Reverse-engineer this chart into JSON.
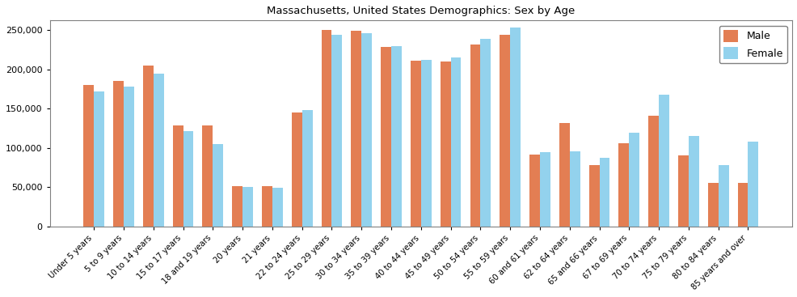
{
  "title": "Massachusetts, United States Demographics: Sex by Age",
  "categories": [
    "Under 5 years",
    "5 to 9 years",
    "10 to 14 years",
    "15 to 17 years",
    "18 and 19 years",
    "20 years",
    "21 years",
    "22 to 24 years",
    "25 to 29 years",
    "30 to 34 years",
    "35 to 39 years",
    "40 to 44 years",
    "45 to 49 years",
    "50 to 54 years",
    "55 to 59 years",
    "60 and 61 years",
    "62 to 64 years",
    "65 and 66 years",
    "67 to 69 years",
    "70 to 74 years",
    "75 to 79 years",
    "80 to 84 years",
    "85 years and over"
  ],
  "male": [
    180000,
    185000,
    205000,
    129000,
    129000,
    51000,
    51000,
    145000,
    250000,
    249000,
    228000,
    211000,
    210000,
    231000,
    244000,
    92000,
    132000,
    78000,
    106000,
    141000,
    90000,
    55000,
    55000
  ],
  "female": [
    172000,
    178000,
    194000,
    121000,
    105000,
    50000,
    49000,
    148000,
    244000,
    246000,
    229000,
    212000,
    215000,
    239000,
    253000,
    95000,
    96000,
    87000,
    119000,
    168000,
    115000,
    78000,
    108000
  ],
  "male_color": "#E07040",
  "female_color": "#87CEEB",
  "bar_alpha": 0.9,
  "ylim": [
    0,
    262000
  ],
  "yticks": [
    0,
    50000,
    100000,
    150000,
    200000,
    250000
  ],
  "legend_labels": [
    "Male",
    "Female"
  ],
  "figsize": [
    9.87,
    3.67
  ],
  "dpi": 100
}
